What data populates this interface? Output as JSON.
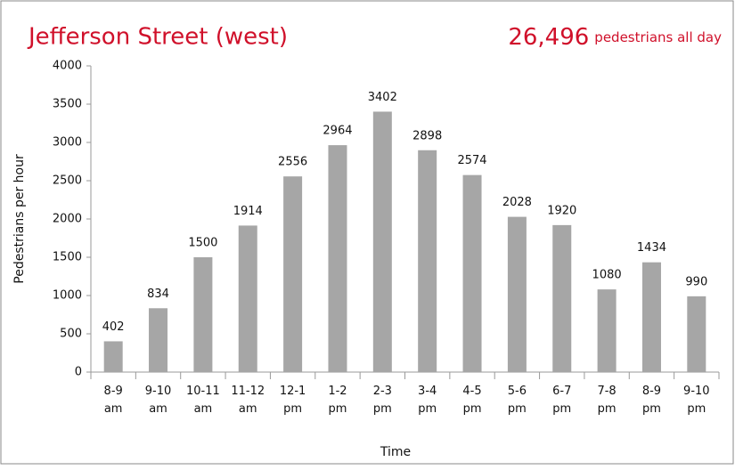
{
  "chart_data": {
    "type": "bar",
    "title": "Jefferson Street (west)",
    "total": "26,496",
    "total_label": "pedestrians all day",
    "xlabel": "Time",
    "ylabel": "Pedestrians per hour",
    "categories": [
      "8-9 am",
      "9-10 am",
      "10-11 am",
      "11-12 am",
      "12-1 pm",
      "1-2 pm",
      "2-3 pm",
      "3-4 pm",
      "4-5 pm",
      "5-6 pm",
      "6-7 pm",
      "7-8 pm",
      "8-9 pm",
      "9-10 pm"
    ],
    "values": [
      402,
      834,
      1500,
      1914,
      2556,
      2964,
      3402,
      2898,
      2574,
      2028,
      1920,
      1080,
      1434,
      990
    ],
    "color": "#a6a6a6",
    "ylim": [
      0,
      4000
    ],
    "yticks": [
      0,
      500,
      1000,
      1500,
      2000,
      2500,
      3000,
      3500,
      4000
    ],
    "grid": false
  }
}
